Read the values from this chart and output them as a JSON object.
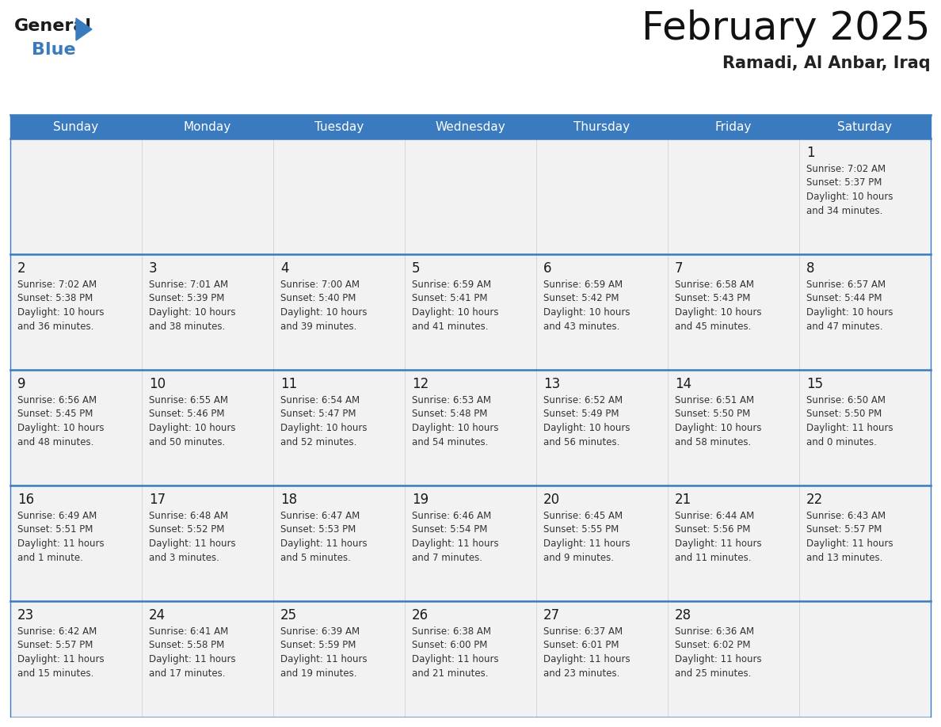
{
  "title": "February 2025",
  "subtitle": "Ramadi, Al Anbar, Iraq",
  "header_color": "#3a7abf",
  "header_text_color": "#FFFFFF",
  "day_names": [
    "Sunday",
    "Monday",
    "Tuesday",
    "Wednesday",
    "Thursday",
    "Friday",
    "Saturday"
  ],
  "bg_color": "#FFFFFF",
  "cell_bg": "#f2f2f2",
  "text_color": "#333333",
  "line_color": "#3a7abf",
  "days": [
    {
      "day": 1,
      "col": 6,
      "row": 0,
      "sunrise": "7:02 AM",
      "sunset": "5:37 PM",
      "daylight_h": "10 hours",
      "daylight_m": "34 minutes."
    },
    {
      "day": 2,
      "col": 0,
      "row": 1,
      "sunrise": "7:02 AM",
      "sunset": "5:38 PM",
      "daylight_h": "10 hours",
      "daylight_m": "36 minutes."
    },
    {
      "day": 3,
      "col": 1,
      "row": 1,
      "sunrise": "7:01 AM",
      "sunset": "5:39 PM",
      "daylight_h": "10 hours",
      "daylight_m": "38 minutes."
    },
    {
      "day": 4,
      "col": 2,
      "row": 1,
      "sunrise": "7:00 AM",
      "sunset": "5:40 PM",
      "daylight_h": "10 hours",
      "daylight_m": "39 minutes."
    },
    {
      "day": 5,
      "col": 3,
      "row": 1,
      "sunrise": "6:59 AM",
      "sunset": "5:41 PM",
      "daylight_h": "10 hours",
      "daylight_m": "41 minutes."
    },
    {
      "day": 6,
      "col": 4,
      "row": 1,
      "sunrise": "6:59 AM",
      "sunset": "5:42 PM",
      "daylight_h": "10 hours",
      "daylight_m": "43 minutes."
    },
    {
      "day": 7,
      "col": 5,
      "row": 1,
      "sunrise": "6:58 AM",
      "sunset": "5:43 PM",
      "daylight_h": "10 hours",
      "daylight_m": "45 minutes."
    },
    {
      "day": 8,
      "col": 6,
      "row": 1,
      "sunrise": "6:57 AM",
      "sunset": "5:44 PM",
      "daylight_h": "10 hours",
      "daylight_m": "47 minutes."
    },
    {
      "day": 9,
      "col": 0,
      "row": 2,
      "sunrise": "6:56 AM",
      "sunset": "5:45 PM",
      "daylight_h": "10 hours",
      "daylight_m": "48 minutes."
    },
    {
      "day": 10,
      "col": 1,
      "row": 2,
      "sunrise": "6:55 AM",
      "sunset": "5:46 PM",
      "daylight_h": "10 hours",
      "daylight_m": "50 minutes."
    },
    {
      "day": 11,
      "col": 2,
      "row": 2,
      "sunrise": "6:54 AM",
      "sunset": "5:47 PM",
      "daylight_h": "10 hours",
      "daylight_m": "52 minutes."
    },
    {
      "day": 12,
      "col": 3,
      "row": 2,
      "sunrise": "6:53 AM",
      "sunset": "5:48 PM",
      "daylight_h": "10 hours",
      "daylight_m": "54 minutes."
    },
    {
      "day": 13,
      "col": 4,
      "row": 2,
      "sunrise": "6:52 AM",
      "sunset": "5:49 PM",
      "daylight_h": "10 hours",
      "daylight_m": "56 minutes."
    },
    {
      "day": 14,
      "col": 5,
      "row": 2,
      "sunrise": "6:51 AM",
      "sunset": "5:50 PM",
      "daylight_h": "10 hours",
      "daylight_m": "58 minutes."
    },
    {
      "day": 15,
      "col": 6,
      "row": 2,
      "sunrise": "6:50 AM",
      "sunset": "5:50 PM",
      "daylight_h": "11 hours",
      "daylight_m": "0 minutes."
    },
    {
      "day": 16,
      "col": 0,
      "row": 3,
      "sunrise": "6:49 AM",
      "sunset": "5:51 PM",
      "daylight_h": "11 hours",
      "daylight_m": "1 minute."
    },
    {
      "day": 17,
      "col": 1,
      "row": 3,
      "sunrise": "6:48 AM",
      "sunset": "5:52 PM",
      "daylight_h": "11 hours",
      "daylight_m": "3 minutes."
    },
    {
      "day": 18,
      "col": 2,
      "row": 3,
      "sunrise": "6:47 AM",
      "sunset": "5:53 PM",
      "daylight_h": "11 hours",
      "daylight_m": "5 minutes."
    },
    {
      "day": 19,
      "col": 3,
      "row": 3,
      "sunrise": "6:46 AM",
      "sunset": "5:54 PM",
      "daylight_h": "11 hours",
      "daylight_m": "7 minutes."
    },
    {
      "day": 20,
      "col": 4,
      "row": 3,
      "sunrise": "6:45 AM",
      "sunset": "5:55 PM",
      "daylight_h": "11 hours",
      "daylight_m": "9 minutes."
    },
    {
      "day": 21,
      "col": 5,
      "row": 3,
      "sunrise": "6:44 AM",
      "sunset": "5:56 PM",
      "daylight_h": "11 hours",
      "daylight_m": "11 minutes."
    },
    {
      "day": 22,
      "col": 6,
      "row": 3,
      "sunrise": "6:43 AM",
      "sunset": "5:57 PM",
      "daylight_h": "11 hours",
      "daylight_m": "13 minutes."
    },
    {
      "day": 23,
      "col": 0,
      "row": 4,
      "sunrise": "6:42 AM",
      "sunset": "5:57 PM",
      "daylight_h": "11 hours",
      "daylight_m": "15 minutes."
    },
    {
      "day": 24,
      "col": 1,
      "row": 4,
      "sunrise": "6:41 AM",
      "sunset": "5:58 PM",
      "daylight_h": "11 hours",
      "daylight_m": "17 minutes."
    },
    {
      "day": 25,
      "col": 2,
      "row": 4,
      "sunrise": "6:39 AM",
      "sunset": "5:59 PM",
      "daylight_h": "11 hours",
      "daylight_m": "19 minutes."
    },
    {
      "day": 26,
      "col": 3,
      "row": 4,
      "sunrise": "6:38 AM",
      "sunset": "6:00 PM",
      "daylight_h": "11 hours",
      "daylight_m": "21 minutes."
    },
    {
      "day": 27,
      "col": 4,
      "row": 4,
      "sunrise": "6:37 AM",
      "sunset": "6:01 PM",
      "daylight_h": "11 hours",
      "daylight_m": "23 minutes."
    },
    {
      "day": 28,
      "col": 5,
      "row": 4,
      "sunrise": "6:36 AM",
      "sunset": "6:02 PM",
      "daylight_h": "11 hours",
      "daylight_m": "25 minutes."
    }
  ],
  "num_rows": 5,
  "title_fontsize": 36,
  "subtitle_fontsize": 15,
  "dayname_fontsize": 11,
  "daynum_fontsize": 12,
  "info_fontsize": 8.5
}
